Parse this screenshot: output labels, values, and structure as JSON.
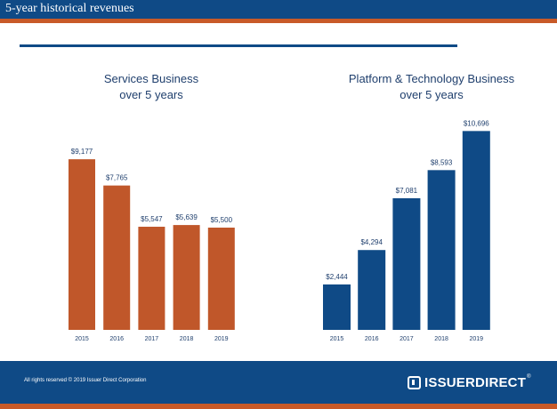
{
  "header": {
    "title": "5-year historical revenues"
  },
  "colors": {
    "header_blue": "#0f4a86",
    "accent_orange": "#c85a28",
    "services_bar": "#c0572a",
    "platform_bar": "#0f4a86",
    "label_text": "#1f3f6d"
  },
  "footer": {
    "copyright": "All rights reserved © 2019 Issuer Direct Corporation",
    "logo_text": "ISSUERDIRECT",
    "logo_mark": "®"
  },
  "chart_data": [
    {
      "type": "bar",
      "title": "Services Business\nover 5 years",
      "categories": [
        "2015",
        "2016",
        "2017",
        "2018",
        "2019"
      ],
      "series": [
        {
          "values": [
            9177,
            7765,
            5547,
            5639,
            5500
          ],
          "color": "#c0572a"
        }
      ],
      "data_labels": [
        "$9,177",
        "$7,765",
        "$5,547",
        "$5,639",
        "$5,500"
      ],
      "xlabel": "",
      "ylabel": "",
      "ylim": [
        0,
        11000
      ],
      "grid": false
    },
    {
      "type": "bar",
      "title": "Platform & Technology Business\nover 5 years",
      "categories": [
        "2015",
        "2016",
        "2017",
        "2018",
        "2019"
      ],
      "series": [
        {
          "values": [
            2444,
            4294,
            7081,
            8593,
            10696
          ],
          "color": "#0f4a86"
        }
      ],
      "data_labels": [
        "$2,444",
        "$4,294",
        "$7,081",
        "$8,593",
        "$10,696"
      ],
      "xlabel": "",
      "ylabel": "",
      "ylim": [
        0,
        11000
      ],
      "grid": false
    }
  ]
}
